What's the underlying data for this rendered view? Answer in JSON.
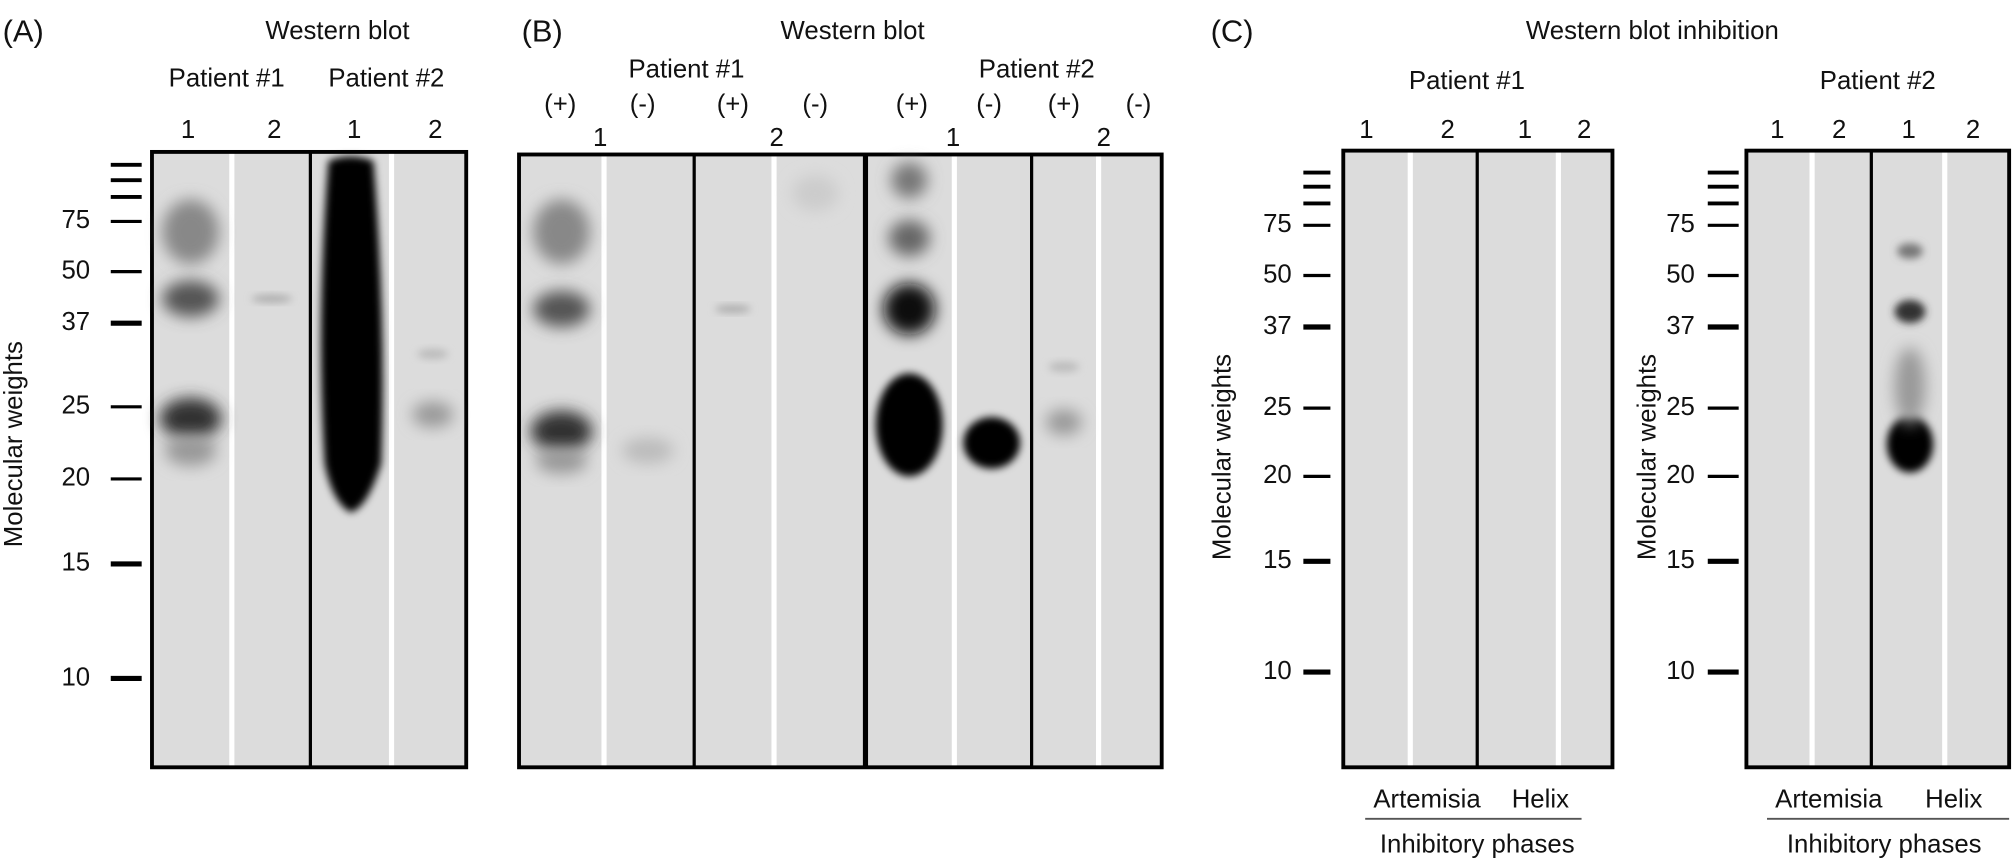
{
  "panels": [
    {
      "label": "(A)",
      "title": "Western blot",
      "y_axis_label": "Molecular weights",
      "mw_markers": [
        75,
        50,
        37,
        25,
        20,
        15,
        10
      ],
      "patients": [
        "Patient #1",
        "Patient #2"
      ],
      "lanes": [
        1,
        2,
        1,
        2
      ]
    },
    {
      "label": "(B)",
      "title": "Western blot",
      "patients": [
        "Patient #1",
        "Patient #2"
      ],
      "conditions": [
        "(+)",
        "(-)",
        "(+)",
        "(-)",
        "(+)",
        "(-)",
        "(+)",
        "(-)"
      ],
      "lanes": [
        1,
        2,
        1,
        2
      ]
    },
    {
      "label": "(C)",
      "title": "Western blot inhibition",
      "blots": [
        {
          "patient": "Patient #1",
          "y_axis_label": "Molecular weights",
          "mw_markers": [
            75,
            50,
            37,
            25,
            20,
            15,
            10
          ],
          "lanes": [
            1,
            2,
            1,
            2
          ],
          "inhibitors": [
            "Artemisia",
            "Helix"
          ],
          "inhibitors_label": "Inhibitory phases"
        },
        {
          "patient": "Patient #2",
          "y_axis_label": "Molecular weights",
          "mw_markers": [
            75,
            50,
            37,
            25,
            20,
            15,
            10
          ],
          "lanes": [
            1,
            2,
            1,
            2
          ],
          "inhibitors": [
            "Artemisia",
            "Helix"
          ],
          "inhibitors_label": "Inhibitory phases"
        }
      ]
    }
  ]
}
